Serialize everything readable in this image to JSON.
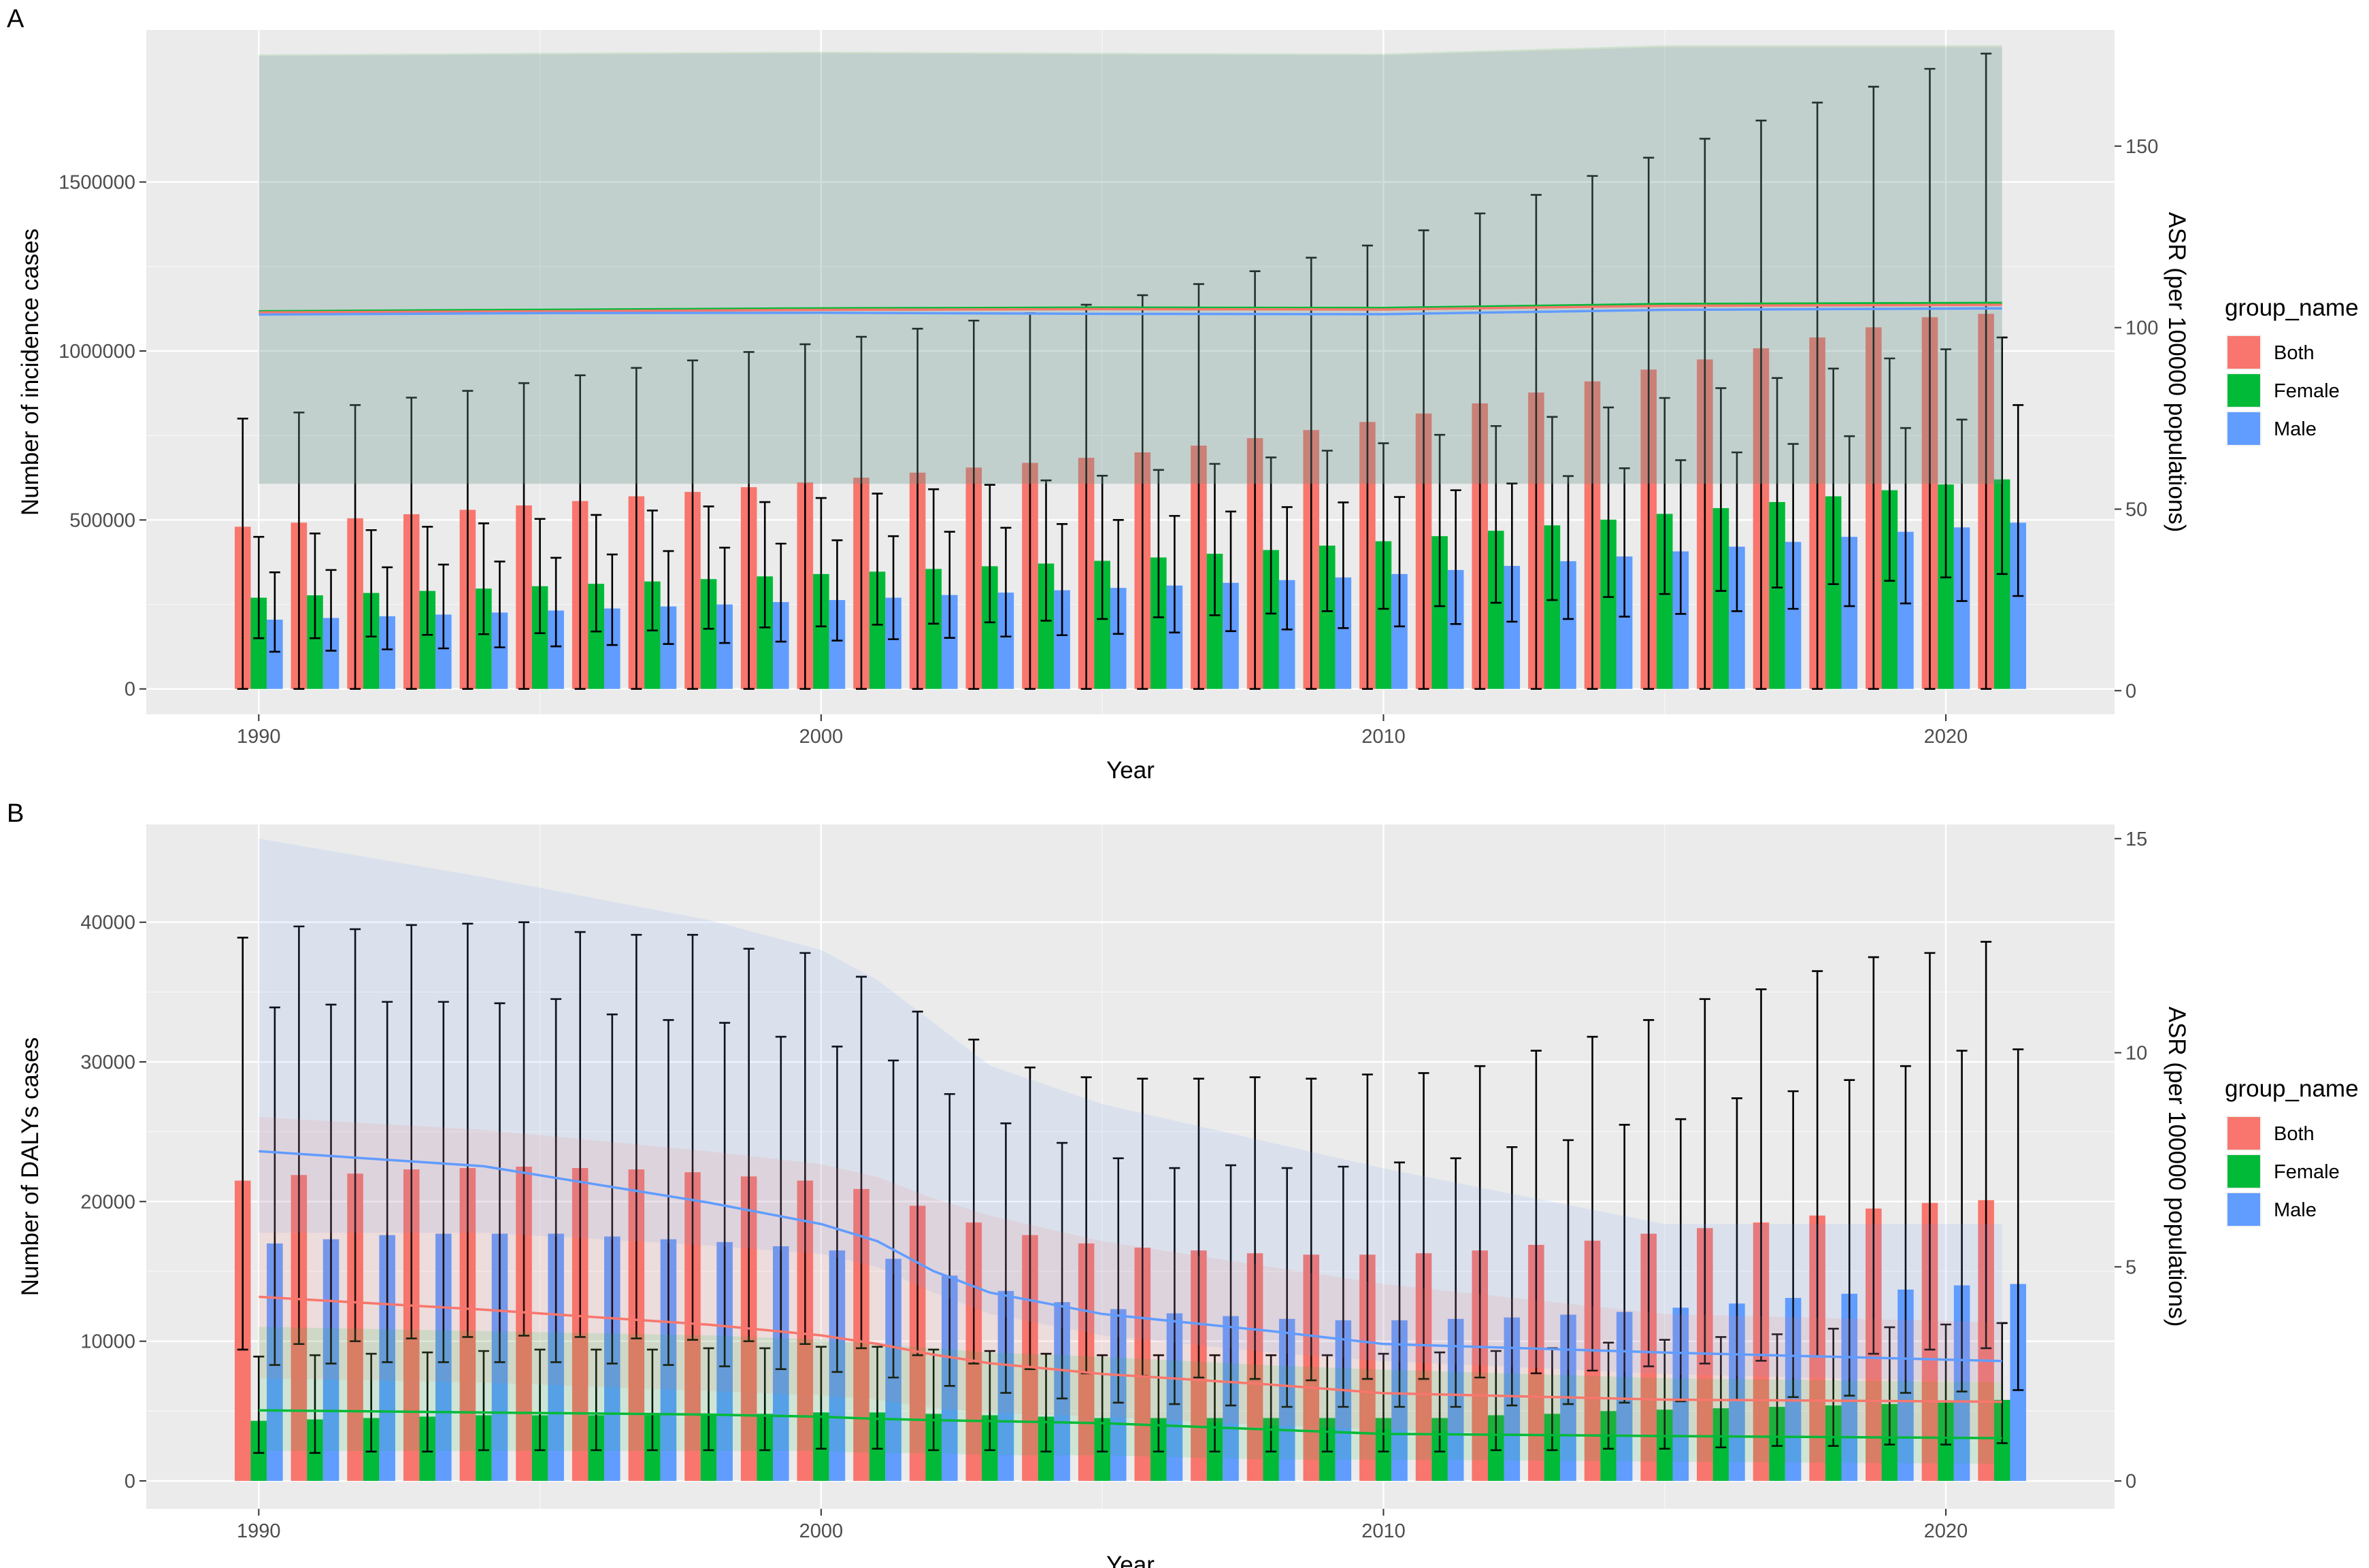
{
  "chart_data": [
    {
      "type": "bar",
      "panel_label": "A",
      "xlabel": "Year",
      "ylabel": "Number of incidence cases",
      "y2label": "ASR (per 100000 populations)",
      "x_ticks": [
        1990,
        2000,
        2010,
        2020
      ],
      "y_ticks": [
        0,
        500000,
        1000000,
        1500000
      ],
      "y_tick_labels": [
        "0",
        "500000",
        "1000000",
        "1500000"
      ],
      "y2_ticks": [
        0,
        50,
        100,
        150
      ],
      "y2_tick_labels": [
        "0",
        "50",
        "100",
        "150"
      ],
      "xlim": [
        1988,
        2023
      ],
      "ylim": [
        -75000,
        1950000
      ],
      "y2lim": [
        -6.5,
        182
      ],
      "legend": {
        "title": "group_name",
        "position": "right",
        "entries": [
          "Both",
          "Female",
          "Male"
        ]
      },
      "categories": [
        1990,
        1991,
        1992,
        1993,
        1994,
        1995,
        1996,
        1997,
        1998,
        1999,
        2000,
        2001,
        2002,
        2003,
        2004,
        2005,
        2006,
        2007,
        2008,
        2009,
        2010,
        2011,
        2012,
        2013,
        2014,
        2015,
        2016,
        2017,
        2018,
        2019,
        2020,
        2021
      ],
      "series": [
        {
          "name": "Both",
          "values": [
            480000,
            492000,
            505000,
            517000,
            530000,
            543000,
            556000,
            570000,
            583000,
            597000,
            611000,
            625000,
            640000,
            655000,
            669000,
            684000,
            700000,
            720000,
            742000,
            766000,
            790000,
            815000,
            845000,
            877000,
            910000,
            945000,
            975000,
            1008000,
            1040000,
            1070000,
            1100000,
            1110000
          ],
          "upper": [
            800000,
            818000,
            840000,
            862000,
            882000,
            905000,
            928000,
            950000,
            972000,
            997000,
            1020000,
            1042000,
            1066000,
            1090000,
            1112000,
            1137000,
            1165000,
            1198000,
            1236000,
            1276000,
            1312000,
            1357000,
            1407000,
            1462000,
            1518000,
            1572000,
            1628000,
            1682000,
            1735000,
            1782000,
            1835000,
            1880000
          ],
          "lower": [
            0,
            0,
            0,
            0,
            0,
            0,
            0,
            0,
            0,
            0,
            0,
            0,
            0,
            0,
            0,
            0,
            0,
            0,
            0,
            0,
            0,
            0,
            0,
            0,
            0,
            0,
            0,
            0,
            0,
            0,
            0,
            0
          ]
        },
        {
          "name": "Female",
          "values": [
            270000,
            277000,
            284000,
            290000,
            297000,
            304000,
            311000,
            318000,
            325000,
            333000,
            340000,
            347000,
            355000,
            363000,
            371000,
            379000,
            389000,
            400000,
            411000,
            424000,
            437000,
            452000,
            468000,
            484000,
            501000,
            518000,
            535000,
            553000,
            570000,
            588000,
            605000,
            620000
          ],
          "upper": [
            450000,
            460000,
            470000,
            480000,
            490000,
            503000,
            515000,
            528000,
            540000,
            553000,
            565000,
            578000,
            591000,
            604000,
            617000,
            631000,
            648000,
            666000,
            685000,
            705000,
            727000,
            752000,
            778000,
            805000,
            833000,
            861000,
            890000,
            920000,
            948000,
            978000,
            1005000,
            1040000
          ],
          "lower": [
            150000,
            150000,
            155000,
            160000,
            162000,
            165000,
            170000,
            173000,
            178000,
            182000,
            185000,
            190000,
            193000,
            197000,
            202000,
            207000,
            212000,
            218000,
            223000,
            230000,
            237000,
            245000,
            255000,
            263000,
            272000,
            281000,
            290000,
            300000,
            310000,
            320000,
            330000,
            340000
          ]
        },
        {
          "name": "Male",
          "values": [
            205000,
            210000,
            215000,
            220000,
            226000,
            232000,
            238000,
            244000,
            250000,
            257000,
            263000,
            270000,
            278000,
            285000,
            292000,
            299000,
            306000,
            314000,
            322000,
            330000,
            340000,
            352000,
            364000,
            378000,
            392000,
            407000,
            421000,
            435000,
            450000,
            465000,
            478000,
            492000
          ],
          "upper": [
            345000,
            352000,
            360000,
            368000,
            377000,
            388000,
            398000,
            408000,
            418000,
            430000,
            440000,
            452000,
            465000,
            477000,
            488000,
            500000,
            512000,
            525000,
            538000,
            552000,
            568000,
            588000,
            608000,
            630000,
            653000,
            677000,
            700000,
            725000,
            748000,
            772000,
            797000,
            840000
          ],
          "lower": [
            110000,
            113000,
            117000,
            120000,
            123000,
            126000,
            130000,
            133000,
            136000,
            140000,
            143000,
            147000,
            151000,
            155000,
            159000,
            163000,
            167000,
            171000,
            176000,
            180000,
            185000,
            192000,
            199000,
            207000,
            214000,
            222000,
            230000,
            237000,
            245000,
            253000,
            260000,
            275000
          ]
        }
      ],
      "asr_x": [
        1990,
        1995,
        2000,
        2005,
        2010,
        2015,
        2021
      ],
      "asr_lines": [
        {
          "name": "Female",
          "values": [
            104.5,
            104.9,
            105.3,
            105.5,
            105.4,
            106.5,
            106.8
          ]
        },
        {
          "name": "Both",
          "values": [
            104.2,
            104.5,
            104.9,
            105.1,
            105.0,
            106.0,
            106.3
          ]
        },
        {
          "name": "Male",
          "values": [
            103.6,
            104.0,
            104.1,
            103.8,
            103.7,
            104.9,
            105.3
          ]
        }
      ],
      "asr_bands": [
        {
          "name": "Both",
          "lower": [
            57,
            57,
            57,
            57,
            57,
            57,
            57
          ],
          "upper": [
            175,
            175.4,
            175.8,
            175.4,
            175.2,
            177.5,
            177.5
          ]
        },
        {
          "name": "Female",
          "lower": [
            57,
            57,
            57,
            57,
            57,
            57,
            57
          ],
          "upper": [
            175.3,
            175.7,
            176,
            175.7,
            175.5,
            177.8,
            177.8
          ]
        },
        {
          "name": "Male",
          "lower": [
            57,
            57,
            57,
            57,
            57,
            57,
            57
          ],
          "upper": [
            174.8,
            175.2,
            175.5,
            175.2,
            175,
            177.2,
            177.2
          ]
        }
      ]
    },
    {
      "type": "bar",
      "panel_label": "B",
      "xlabel": "Year",
      "ylabel": "Number of DALYs cases",
      "y2label": "ASR (per 100000 populations)",
      "x_ticks": [
        1990,
        2000,
        2010,
        2020
      ],
      "y_ticks": [
        0,
        10000,
        20000,
        30000,
        40000
      ],
      "y_tick_labels": [
        "0",
        "10000",
        "20000",
        "30000",
        "40000"
      ],
      "y2_ticks": [
        0,
        5,
        10,
        15
      ],
      "y2_tick_labels": [
        "0",
        "5",
        "10",
        "15"
      ],
      "xlim": [
        1988,
        2023
      ],
      "ylim": [
        -2000,
        47000
      ],
      "y2lim": [
        -0.65,
        15.33
      ],
      "legend": {
        "title": "group_name",
        "position": "right",
        "entries": [
          "Both",
          "Female",
          "Male"
        ]
      },
      "categories": [
        1990,
        1991,
        1992,
        1993,
        1994,
        1995,
        1996,
        1997,
        1998,
        1999,
        2000,
        2001,
        2002,
        2003,
        2004,
        2005,
        2006,
        2007,
        2008,
        2009,
        2010,
        2011,
        2012,
        2013,
        2014,
        2015,
        2016,
        2017,
        2018,
        2019,
        2020,
        2021
      ],
      "series": [
        {
          "name": "Both",
          "values": [
            21500,
            21900,
            22000,
            22300,
            22400,
            22500,
            22400,
            22300,
            22100,
            21800,
            21500,
            20900,
            19700,
            18500,
            17600,
            17000,
            16700,
            16500,
            16300,
            16200,
            16200,
            16300,
            16500,
            16900,
            17200,
            17700,
            18100,
            18500,
            19000,
            19500,
            19900,
            20100
          ],
          "upper": [
            38900,
            39700,
            39500,
            39800,
            39900,
            40000,
            39300,
            39100,
            39100,
            38100,
            37800,
            36100,
            33600,
            31600,
            29600,
            28900,
            28800,
            28800,
            28900,
            28800,
            29100,
            29200,
            29700,
            30800,
            31800,
            33000,
            34500,
            35200,
            36500,
            37500,
            37800,
            38600
          ],
          "lower": [
            9400,
            9800,
            10000,
            10200,
            10300,
            10400,
            10300,
            10200,
            10100,
            10000,
            9800,
            9500,
            9000,
            8400,
            8000,
            7700,
            7500,
            7400,
            7300,
            7200,
            7300,
            7300,
            7400,
            7700,
            7900,
            8200,
            8400,
            8600,
            8900,
            9100,
            9400,
            9500
          ]
        },
        {
          "name": "Female",
          "values": [
            4300,
            4400,
            4500,
            4600,
            4700,
            4700,
            4700,
            4700,
            4800,
            4800,
            4900,
            4900,
            4800,
            4700,
            4600,
            4500,
            4500,
            4500,
            4500,
            4500,
            4500,
            4500,
            4700,
            4800,
            5000,
            5100,
            5200,
            5300,
            5400,
            5500,
            5600,
            5800
          ],
          "upper": [
            8900,
            9000,
            9100,
            9200,
            9300,
            9400,
            9400,
            9400,
            9500,
            9500,
            9600,
            9600,
            9400,
            9300,
            9100,
            9000,
            9000,
            9000,
            9000,
            9000,
            9100,
            9200,
            9300,
            9500,
            9900,
            10100,
            10300,
            10500,
            10900,
            11000,
            11200,
            11300
          ],
          "lower": [
            2000,
            2000,
            2100,
            2100,
            2200,
            2200,
            2200,
            2200,
            2200,
            2200,
            2300,
            2300,
            2200,
            2200,
            2100,
            2100,
            2100,
            2100,
            2100,
            2100,
            2100,
            2100,
            2200,
            2200,
            2300,
            2300,
            2400,
            2500,
            2500,
            2600,
            2600,
            2700
          ]
        },
        {
          "name": "Male",
          "values": [
            17000,
            17300,
            17600,
            17700,
            17700,
            17700,
            17500,
            17300,
            17100,
            16800,
            16500,
            15900,
            14700,
            13600,
            12800,
            12300,
            12000,
            11800,
            11600,
            11500,
            11500,
            11600,
            11700,
            11900,
            12100,
            12400,
            12700,
            13100,
            13400,
            13700,
            14000,
            14100
          ],
          "upper": [
            33900,
            34100,
            34300,
            34300,
            34200,
            34500,
            33400,
            33000,
            32800,
            31800,
            31100,
            30100,
            27700,
            25600,
            24200,
            23100,
            22400,
            22600,
            22400,
            22500,
            22800,
            23100,
            23900,
            24400,
            25500,
            25900,
            27400,
            27900,
            28700,
            29700,
            30800,
            30900
          ],
          "lower": [
            8300,
            8400,
            8500,
            8500,
            8500,
            8500,
            8400,
            8300,
            8200,
            8000,
            7800,
            7400,
            6800,
            6300,
            5900,
            5600,
            5500,
            5400,
            5300,
            5300,
            5300,
            5300,
            5400,
            5500,
            5600,
            5700,
            5800,
            6000,
            6100,
            6300,
            6400,
            6500
          ]
        }
      ],
      "asr_x": [
        1990,
        1994,
        1998,
        2000,
        2001,
        2002,
        2003,
        2005,
        2008,
        2010,
        2015,
        2021
      ],
      "asr_lines": [
        {
          "name": "Male",
          "values": [
            7.7,
            7.35,
            6.5,
            6.0,
            5.6,
            4.9,
            4.4,
            3.9,
            3.5,
            3.2,
            3.0,
            2.8
          ]
        },
        {
          "name": "Both",
          "values": [
            4.3,
            4.0,
            3.65,
            3.4,
            3.2,
            2.95,
            2.75,
            2.5,
            2.25,
            2.05,
            1.9,
            1.85
          ]
        },
        {
          "name": "Female",
          "values": [
            1.65,
            1.6,
            1.55,
            1.5,
            1.45,
            1.42,
            1.4,
            1.35,
            1.2,
            1.1,
            1.05,
            1.0
          ]
        }
      ],
      "asr_bands": [
        {
          "name": "Male",
          "lower": [
            5.8,
            5.8,
            5.5,
            5.3,
            5.0,
            4.4,
            3.9,
            3.4,
            3.0,
            2.8,
            2.5,
            2.3
          ],
          "upper": [
            15.0,
            14.1,
            13.1,
            12.4,
            11.7,
            10.7,
            9.7,
            8.8,
            7.9,
            7.3,
            6.0,
            6.0
          ]
        },
        {
          "name": "Both",
          "lower": [
            2.4,
            2.3,
            2.1,
            2.0,
            1.9,
            1.7,
            1.6,
            1.5,
            1.3,
            1.2,
            1.0,
            1.0
          ],
          "upper": [
            8.5,
            8.2,
            7.7,
            7.4,
            7.1,
            6.6,
            6.2,
            5.6,
            5.0,
            4.6,
            3.9,
            3.7
          ]
        },
        {
          "name": "Female",
          "lower": [
            0.7,
            0.7,
            0.7,
            0.7,
            0.65,
            0.65,
            0.6,
            0.6,
            0.5,
            0.5,
            0.45,
            0.4
          ],
          "upper": [
            3.6,
            3.5,
            3.4,
            3.3,
            3.2,
            3.1,
            3.0,
            2.9,
            2.7,
            2.6,
            2.4,
            2.3
          ]
        }
      ]
    }
  ],
  "colors": {
    "Both": "#F8766D",
    "Female": "#00BA38",
    "Male": "#619CFF",
    "panel_bg": "#EBEBEB",
    "grid": "#FFFFFF",
    "errorbar": "#000000"
  }
}
